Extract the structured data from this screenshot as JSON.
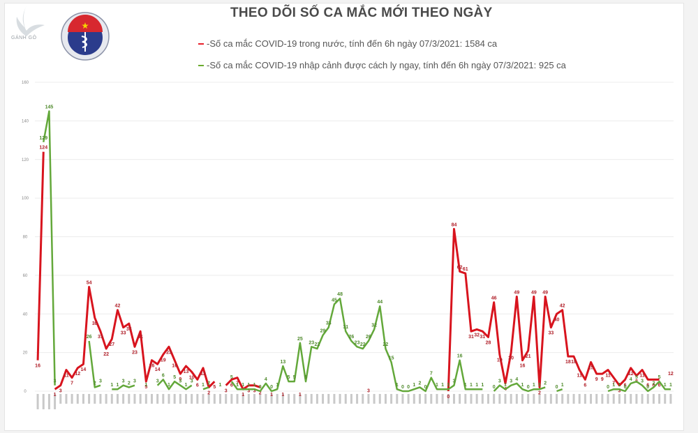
{
  "header": {
    "title": "THEO DÕI SỐ CA MẮC MỚI THEO NGÀY",
    "logo_text_top": "BỘ Y TẾ",
    "logo_text_bottom": "MINISTRY OF HEALTH",
    "watermark": "GÁNH GÔ"
  },
  "legend": [
    {
      "label": "-Số ca mắc COVID-19 trong nước, tính đến 6h ngày 07/3/2021: 1584 ca",
      "color": "#e8202a"
    },
    {
      "label": "-Số ca mắc COVID-19 nhập cảnh được cách ly ngay, tính đến 6h ngày 07/3/2021: 925 ca",
      "color": "#6aab2e"
    }
  ],
  "colors": {
    "domestic": "#d8141e",
    "imported": "#63a83a",
    "grid": "#ececec"
  },
  "chart_data": {
    "type": "line",
    "title": "THEO DÕI SỐ CA MẮC MỚI THEO NGÀY",
    "xlabel": "",
    "ylabel": "",
    "ylim": [
      0,
      160
    ],
    "yticks": [
      0,
      20,
      40,
      60,
      80,
      100,
      120,
      140,
      160
    ],
    "grid": true,
    "legend_position": "top",
    "series": [
      {
        "name": "Số ca mắc COVID-19 trong nước, tính đến 6h ngày 07/3/2021: 1584 ca",
        "color": "#d8141e",
        "points": [
          [
            0,
            16
          ],
          [
            1,
            124
          ],
          [
            3,
            1
          ],
          [
            4,
            3
          ],
          [
            5,
            11
          ],
          [
            6,
            7
          ],
          [
            7,
            12
          ],
          [
            8,
            14
          ],
          [
            9,
            54
          ],
          [
            10,
            38
          ],
          [
            11,
            31
          ],
          [
            12,
            22
          ],
          [
            13,
            27
          ],
          [
            14,
            42
          ],
          [
            15,
            33
          ],
          [
            16,
            35
          ],
          [
            17,
            23
          ],
          [
            18,
            31
          ],
          [
            19,
            5
          ],
          [
            20,
            16
          ],
          [
            21,
            14
          ],
          [
            22,
            19
          ],
          [
            23,
            23
          ],
          [
            24,
            16
          ],
          [
            25,
            9
          ],
          [
            26,
            13
          ],
          [
            27,
            10
          ],
          [
            28,
            6
          ],
          [
            29,
            12
          ],
          [
            30,
            2
          ],
          [
            31,
            5
          ],
          [
            33,
            3
          ],
          [
            34,
            6
          ],
          [
            35,
            7
          ],
          [
            36,
            1
          ],
          [
            37,
            3
          ],
          [
            38,
            3
          ],
          [
            39,
            2
          ],
          [
            41,
            1
          ],
          [
            43,
            1
          ],
          [
            46,
            1
          ],
          [
            58,
            3
          ],
          [
            72,
            0
          ],
          [
            73,
            84
          ],
          [
            74,
            62
          ],
          [
            75,
            61
          ],
          [
            76,
            31
          ],
          [
            77,
            32
          ],
          [
            78,
            31
          ],
          [
            79,
            28
          ],
          [
            80,
            46
          ],
          [
            81,
            19
          ],
          [
            82,
            4
          ],
          [
            83,
            20
          ],
          [
            84,
            49
          ],
          [
            85,
            16
          ],
          [
            86,
            21
          ],
          [
            87,
            49
          ],
          [
            88,
            2
          ],
          [
            89,
            49
          ],
          [
            90,
            33
          ],
          [
            91,
            40
          ],
          [
            92,
            42
          ],
          [
            93,
            18
          ],
          [
            94,
            18
          ],
          [
            95,
            11
          ],
          [
            96,
            6
          ],
          [
            97,
            15
          ],
          [
            98,
            9
          ],
          [
            99,
            9
          ],
          [
            100,
            11
          ],
          [
            101,
            7
          ],
          [
            102,
            3
          ],
          [
            103,
            6
          ],
          [
            104,
            12
          ],
          [
            105,
            8
          ],
          [
            106,
            11
          ],
          [
            107,
            6
          ],
          [
            108,
            6
          ],
          [
            109,
            6
          ],
          [
            111,
            12
          ]
        ]
      },
      {
        "name": "Số ca mắc COVID-19 nhập cảnh được cách ly ngay, tính đến 6h ngày 07/3/2021: 925 ca",
        "color": "#63a83a",
        "points": [
          [
            1,
            129
          ],
          [
            2,
            145
          ],
          [
            3,
            3
          ],
          [
            9,
            26
          ],
          [
            10,
            2
          ],
          [
            11,
            3
          ],
          [
            13,
            1
          ],
          [
            14,
            1
          ],
          [
            15,
            3
          ],
          [
            16,
            2
          ],
          [
            17,
            3
          ],
          [
            19,
            1
          ],
          [
            21,
            3
          ],
          [
            22,
            6
          ],
          [
            23,
            1
          ],
          [
            24,
            5
          ],
          [
            25,
            3
          ],
          [
            26,
            1
          ],
          [
            27,
            3
          ],
          [
            29,
            1
          ],
          [
            30,
            2
          ],
          [
            32,
            1
          ],
          [
            34,
            5
          ],
          [
            35,
            1
          ],
          [
            36,
            1
          ],
          [
            37,
            1
          ],
          [
            38,
            1
          ],
          [
            39,
            0
          ],
          [
            40,
            4
          ],
          [
            41,
            0
          ],
          [
            42,
            1
          ],
          [
            43,
            13
          ],
          [
            44,
            5
          ],
          [
            45,
            5
          ],
          [
            46,
            25
          ],
          [
            47,
            5
          ],
          [
            48,
            23
          ],
          [
            49,
            22
          ],
          [
            50,
            29
          ],
          [
            51,
            33
          ],
          [
            52,
            45
          ],
          [
            53,
            48
          ],
          [
            54,
            31
          ],
          [
            55,
            26
          ],
          [
            56,
            23
          ],
          [
            57,
            22
          ],
          [
            58,
            26
          ],
          [
            59,
            32
          ],
          [
            60,
            44
          ],
          [
            61,
            22
          ],
          [
            62,
            15
          ],
          [
            63,
            1
          ],
          [
            64,
            0
          ],
          [
            65,
            0
          ],
          [
            66,
            1
          ],
          [
            67,
            2
          ],
          [
            68,
            0
          ],
          [
            69,
            7
          ],
          [
            70,
            1
          ],
          [
            71,
            1
          ],
          [
            72,
            1
          ],
          [
            73,
            3
          ],
          [
            74,
            16
          ],
          [
            75,
            1
          ],
          [
            76,
            1
          ],
          [
            77,
            1
          ],
          [
            78,
            1
          ],
          [
            80,
            0
          ],
          [
            81,
            3
          ],
          [
            82,
            1
          ],
          [
            83,
            3
          ],
          [
            84,
            4
          ],
          [
            85,
            1
          ],
          [
            86,
            0
          ],
          [
            87,
            1
          ],
          [
            88,
            1
          ],
          [
            89,
            2
          ],
          [
            91,
            0
          ],
          [
            92,
            1
          ],
          [
            100,
            0
          ],
          [
            101,
            1
          ],
          [
            102,
            1
          ],
          [
            103,
            0
          ],
          [
            104,
            4
          ],
          [
            105,
            5
          ],
          [
            106,
            3
          ],
          [
            107,
            0
          ],
          [
            108,
            2
          ],
          [
            109,
            5
          ],
          [
            110,
            1
          ],
          [
            111,
            1
          ]
        ]
      }
    ],
    "x_count": 112,
    "x_labels_note": "rotated date labels (illegible in screenshot)"
  }
}
